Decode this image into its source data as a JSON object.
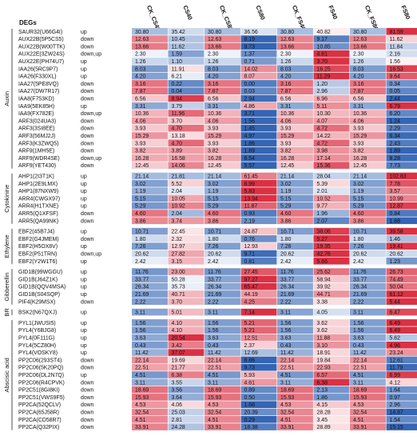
{
  "chart_data": {
    "type": "heatmap",
    "row_header": "DEGs",
    "columns": [
      "CK_CS40",
      "CS40",
      "CK_CS80",
      "CS80",
      "CK_FS40",
      "FS40",
      "CK_FS80",
      "FS80"
    ],
    "groups": [
      {
        "name": "Auxin",
        "rows": [
          {
            "gene": "SAUR32(U66G4I)",
            "reg": "up",
            "values": [
              30.8,
              35.42,
              30.8,
              36.56,
              30.8,
              40.82,
              30.8,
              81.59
            ]
          },
          {
            "gene": "AUX22B(5P5CS5)",
            "reg": "down",
            "values": [
              12.63,
              10.45,
              12.63,
              8.19,
              12.63,
              9.17,
              12.63,
              11.62
            ]
          },
          {
            "gene": "AUX22B(W00TTK)",
            "reg": "down",
            "values": [
              13.66,
              11.62,
              13.66,
              9.73,
              13.66,
              10.85,
              13.66,
              11.84
            ]
          },
          {
            "gene": "AUX22E(3ZW24S)",
            "reg": "down,up",
            "values": [
              2.3,
              1.59,
              2.3,
              1.37,
              2.3,
              4.61,
              2.3,
              2.16
            ]
          },
          {
            "gene": "AUX22E(PH74U7)",
            "reg": "up",
            "values": [
              1.26,
              1.1,
              1.26,
              0.71,
              1.26,
              3.7,
              1.26,
              1.56
            ]
          },
          {
            "gene": "IAA26(5RC9P7)",
            "reg": "up",
            "values": [
              8.03,
              11.91,
              8.03,
              14.02,
              8.03,
              16.25,
              8.03,
              16.53
            ]
          },
          {
            "gene": "IAA26(F330XL)",
            "reg": "up",
            "values": [
              4.2,
              6.21,
              4.2,
              8.07,
              4.2,
              11.29,
              4.2,
              9.64
            ]
          },
          {
            "gene": "IAA27(5PE8VQ)",
            "reg": "down",
            "values": [
              3.16,
              0.22,
              3.16,
              0.0,
              3.16,
              1.2,
              3.16,
              0.34
            ]
          },
          {
            "gene": "IAA27(DW7R17)",
            "reg": "down",
            "values": [
              7.87,
              0.04,
              7.87,
              0.03,
              7.87,
              2.96,
              7.87,
              0.05
            ]
          },
          {
            "gene": "IAA8(F753KD)",
            "reg": "down",
            "values": [
              6.56,
              8.94,
              6.56,
              2.94,
              6.56,
              6.96,
              6.56,
              2.44
            ]
          },
          {
            "gene": "IAA9(5EK85H)",
            "reg": "up",
            "values": [
              3.31,
              3.79,
              3.31,
              4.86,
              3.31,
              5.11,
              3.31,
              6.79
            ]
          },
          {
            "gene": "IAA9(FX782E)",
            "reg": "down,up",
            "values": [
              10.36,
              11.96,
              10.36,
              3.71,
              10.36,
              10.3,
              10.36,
              6.2
            ]
          },
          {
            "gene": "ARF3(024UA3)",
            "reg": "down",
            "values": [
              4.06,
              3.7,
              4.06,
              1.56,
              4.06,
              4.07,
              4.06,
              1.24
            ]
          },
          {
            "gene": "ARF3(3SI8EE)",
            "reg": "down",
            "values": [
              3.93,
              4.7,
              3.93,
              1.45,
              3.93,
              4.72,
              3.93,
              2.29
            ]
          },
          {
            "gene": "ARF3(56MJ2J)",
            "reg": "down",
            "values": [
              15.29,
              13.18,
              15.29,
              4.97,
              15.29,
              14.22,
              15.29,
              6.34
            ]
          },
          {
            "gene": "ARF3(K3ZWQ5)",
            "reg": "down",
            "values": [
              3.93,
              4.7,
              3.93,
              1.86,
              3.93,
              4.72,
              3.93,
              2.43
            ]
          },
          {
            "gene": "ARF9(1MH5E)",
            "reg": "down",
            "values": [
              3.82,
              3.89,
              3.82,
              1.89,
              3.82,
              3.98,
              3.82,
              1.89
            ]
          },
          {
            "gene": "ARF9(WDR4SE)",
            "reg": "down,up",
            "values": [
              16.28,
              16.58,
              16.28,
              6.54,
              16.28,
              17.14,
              16.28,
              8.28
            ]
          },
          {
            "gene": "ARF9(YET430)",
            "reg": "down",
            "values": [
              12.45,
              14.06,
              12.45,
              5.57,
              12.45,
              15.36,
              12.45,
              7.73
            ]
          }
        ]
      },
      {
        "name": "Cytokinine",
        "rows": [
          {
            "gene": "AHP1(2I3T1K)",
            "reg": "up",
            "values": [
              21.14,
              21.81,
              21.14,
              61.45,
              21.14,
              28.04,
              21.14,
              102.83
            ]
          },
          {
            "gene": "AHP1(2E9LMX)",
            "reg": "up",
            "values": [
              3.02,
              5.52,
              3.02,
              8.99,
              3.02,
              5.39,
              3.02,
              7.78
            ]
          },
          {
            "gene": "AHP1(87NXW9)",
            "reg": "up",
            "values": [
              1.19,
              2.04,
              1.19,
              5.83,
              1.19,
              2.01,
              1.19,
              3.57
            ]
          },
          {
            "gene": "ARR4(CWGX97)",
            "reg": "up",
            "values": [
              5.15,
              10.05,
              5.15,
              13.94,
              5.15,
              10.52,
              5.15,
              10.99
            ]
          },
          {
            "gene": "ARR4(H1TXNE)",
            "reg": "up",
            "values": [
              5.29,
              10.92,
              5.29,
              11.87,
              5.29,
              9.77,
              5.29,
              12.87
            ]
          },
          {
            "gene": "ARR5(Q1XFSF)",
            "reg": "down",
            "values": [
              4.6,
              2.04,
              4.6,
              0.93,
              4.6,
              1.96,
              4.6,
              0.84
            ]
          },
          {
            "gene": "ARR5(QA99NK)",
            "reg": "down",
            "values": [
              3.86,
              3.74,
              3.86,
              2.19,
              3.86,
              2.07,
              3.86,
              1.68
            ]
          }
        ]
      },
      {
        "name": "Ethylene",
        "rows": [
          {
            "gene": "EBF2(45B7J4)",
            "reg": "up",
            "values": [
              10.71,
              22.45,
              10.71,
              24.87,
              10.71,
              38.06,
              10.71,
              39.58
            ]
          },
          {
            "gene": "EBF2(G4JMEM)",
            "reg": "down",
            "values": [
              1.8,
              2.32,
              1.8,
              0.76,
              1.8,
              5.27,
              1.8,
              1.46
            ]
          },
          {
            "gene": "EBF2(H5OX8V)",
            "reg": "up",
            "values": [
              7.26,
              12.97,
              7.26,
              12.93,
              7.26,
              19.35,
              7.26,
              19.41
            ]
          },
          {
            "gene": "EBF2(P51TRN)",
            "reg": "down,up",
            "values": [
              20.62,
              27.82,
              20.62,
              9.71,
              20.62,
              42.76,
              20.62,
              20.62
            ]
          },
          {
            "gene": "EBF2(Y2W1T6)",
            "reg": "up",
            "values": [
              2.42,
              3.15,
              2.42,
              0.81,
              2.42,
              5.66,
              2.42,
              1.23
            ]
          }
        ]
      },
      {
        "name": "Gibberellin",
        "rows": [
          {
            "gene": "GID1B(99WGGU)",
            "reg": "up",
            "values": [
              11.76,
              23.0,
              11.76,
              27.45,
              11.76,
              25.62,
              11.76,
              26.73
            ]
          },
          {
            "gene": "GID1B(J64Z1K)",
            "reg": "up",
            "values": [
              33.77,
              50.28,
              33.77,
              97.27,
              33.77,
              58.94,
              33.77,
              74.49
            ]
          },
          {
            "gene": "GID1B(QQV4MSA)",
            "reg": "up",
            "values": [
              26.34,
              35.73,
              26.34,
              65.47,
              26.34,
              39.92,
              26.34,
              50.04
            ]
          },
          {
            "gene": "GID1B(S04SQP)",
            "reg": "up",
            "values": [
              21.69,
              40.71,
              21.69,
              44.19,
              21.69,
              44.71,
              21.69,
              61.12
            ]
          },
          {
            "gene": "PIF4(K29MSX)",
            "reg": "down",
            "values": [
              2.22,
              3.7,
              2.22,
              4.25,
              2.22,
              3.38,
              2.22,
              5.44
            ]
          }
        ]
      },
      {
        "name": "BR",
        "rows": [
          {
            "gene": "BSK2(N67QXJ)",
            "reg": "up",
            "values": [
              3.11,
              5.01,
              3.11,
              7.14,
              3.11,
              4.05,
              3.11,
              6.47
            ]
          }
        ]
      },
      {
        "name": "Abscisic acid",
        "rows": [
          {
            "gene": "PYL1(JWUSI5)",
            "reg": "up",
            "values": [
              1.56,
              4.1,
              1.56,
              5.21,
              1.56,
              3.62,
              1.56,
              6.49
            ]
          },
          {
            "gene": "PYL4(Y6BJG8)",
            "reg": "up",
            "values": [
              1.56,
              4.1,
              1.56,
              5.21,
              1.56,
              3.62,
              1.56,
              6.49
            ]
          },
          {
            "gene": "PYL4(0F111G)",
            "reg": "up",
            "values": [
              3.63,
              20.54,
              3.63,
              12.51,
              3.63,
              11.88,
              3.63,
              5.62
            ]
          },
          {
            "gene": "PYL4(5CZ80H)",
            "reg": "up",
            "values": [
              0.43,
              3.42,
              0.43,
              2.37,
              0.43,
              3.1,
              0.43,
              4.96
            ]
          },
          {
            "gene": "PYL4(VOSKY8)",
            "reg": "up",
            "values": [
              11.42,
              37.07,
              11.42,
              12.69,
              11.42,
              18.91,
              11.42,
              23.24
            ]
          },
          {
            "gene": "PP2C06(293ST4)",
            "reg": "down",
            "values": [
              22.14,
              19.69,
              22.14,
              8.86,
              22.14,
              19.84,
              22.14,
              12.61
            ]
          },
          {
            "gene": "PP2C06(5K20PQ)",
            "reg": "down",
            "values": [
              22.51,
              21.77,
              22.51,
              9.73,
              22.51,
              22.93,
              22.51,
              11.79
            ]
          },
          {
            "gene": "PP2C06(DL2N7Q)",
            "reg": "up",
            "values": [
              4.51,
              6.38,
              4.51,
              5.93,
              4.51,
              6.57,
              4.51,
              6.99
            ]
          },
          {
            "gene": "PP2C06(R4CPVK)",
            "reg": "down",
            "values": [
              3.11,
              3.55,
              3.11,
              4.61,
              3.11,
              6.38,
              3.11,
              4.12
            ]
          },
          {
            "gene": "PP2C51(8GI8KI)",
            "reg": "down",
            "values": [
              18.69,
              3.56,
              18.69,
              0.89,
              18.69,
              2.13,
              18.69,
              1.64
            ]
          },
          {
            "gene": "PP2C51(VWS9F5)",
            "reg": "down",
            "values": [
              15.93,
              3.64,
              15.93,
              0.5,
              15.93,
              1.86,
              15.93,
              0.97
            ]
          },
          {
            "gene": "PP2CA(52QCLV)",
            "reg": "down",
            "values": [
              4.53,
              4.06,
              4.53,
              1.68,
              4.53,
              4.15,
              4.53,
              2.96
            ]
          },
          {
            "gene": "PP2CA(65J58R)",
            "reg": "down",
            "values": [
              32.54,
              25.03,
              32.54,
              20.39,
              32.54,
              28.28,
              32.54,
              14.87
            ]
          },
          {
            "gene": "PP2CA(CD58R7)",
            "reg": "down",
            "values": [
              4.51,
              2.81,
              4.51,
              0.29,
              4.51,
              3.45,
              4.51,
              1.54
            ]
          },
          {
            "gene": "PP2CA(Q32PIX)",
            "reg": "down",
            "values": [
              33.91,
              24.28,
              33.91,
              18.38,
              33.91,
              28.89,
              33.91,
              15.15
            ]
          }
        ]
      }
    ],
    "color_low": "#2a5db0",
    "color_mid": "#ffffff",
    "color_high": "#d9263a",
    "color_scale": "row-normalized",
    "grid": true
  }
}
